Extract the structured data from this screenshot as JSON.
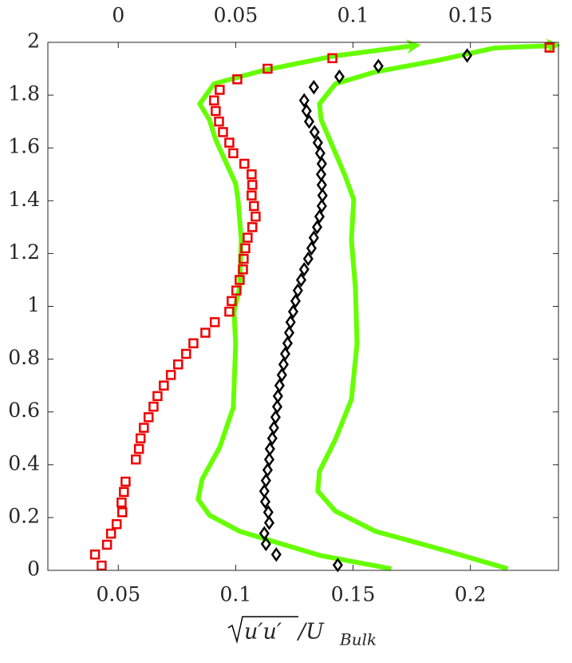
{
  "chart_data": {
    "type": "scatter",
    "xlabel": {
      "root": "u′u′",
      "rest": "/U",
      "sub": "Bulk"
    },
    "xlim": [
      0.02,
      0.2375
    ],
    "xticks": [
      0.05,
      0.1,
      0.15,
      0.2
    ],
    "x2lim": [
      -0.03,
      0.1875
    ],
    "x2ticks": [
      0,
      0.05,
      0.1,
      0.15
    ],
    "ylim": [
      0,
      2
    ],
    "yticks": [
      0,
      0.2,
      0.4,
      0.6,
      0.8,
      1,
      1.2,
      1.4,
      1.6,
      1.8,
      2
    ],
    "series": [
      {
        "style": "line",
        "color": "#66ff00",
        "axis": "x",
        "x": [
          0.1663,
          0.1357,
          0.1017,
          0.0888,
          0.084,
          0.0857,
          0.0932,
          0.099,
          0.1,
          0.0993,
          0.1017,
          0.1024,
          0.101,
          0.1,
          0.0915,
          0.0888,
          0.0847,
          0.0908,
          0.1119,
          0.1425,
          0.1765
        ],
        "y": [
          0.006,
          0.057,
          0.148,
          0.209,
          0.269,
          0.345,
          0.466,
          0.617,
          0.859,
          0.98,
          1.071,
          1.253,
          1.404,
          1.464,
          1.631,
          1.707,
          1.767,
          1.843,
          1.894,
          1.949,
          1.988
        ]
      },
      {
        "style": "line",
        "color": "#66ff00",
        "axis": "x2",
        "x": [
          0.1659,
          0.1401,
          0.1095,
          0.0925,
          0.085,
          0.0857,
          0.0925,
          0.0993,
          0.1017,
          0.101,
          0.0993,
          0.1003,
          0.0966,
          0.0908,
          0.0864,
          0.0857,
          0.0925,
          0.1095,
          0.1367,
          0.1605,
          0.186
        ],
        "y": [
          0.006,
          0.073,
          0.148,
          0.224,
          0.3,
          0.375,
          0.496,
          0.647,
          0.859,
          1.071,
          1.253,
          1.404,
          1.495,
          1.616,
          1.707,
          1.767,
          1.843,
          1.888,
          1.933,
          1.979,
          1.988
        ]
      },
      {
        "style": "square",
        "color": "#ee0000",
        "axis": "x",
        "x": [
          0.0429,
          0.0401,
          0.0452,
          0.0469,
          0.0493,
          0.0517,
          0.0514,
          0.0524,
          0.0531,
          0.0575,
          0.0588,
          0.0595,
          0.0609,
          0.0629,
          0.065,
          0.0667,
          0.0694,
          0.0724,
          0.0755,
          0.0789,
          0.082,
          0.0871,
          0.0911,
          0.0973,
          0.0983,
          0.1003,
          0.1017,
          0.1031,
          0.1034,
          0.1041,
          0.1051,
          0.1071,
          0.1085,
          0.1078,
          0.1068,
          0.1071,
          0.1068,
          0.1037,
          0.099,
          0.0973,
          0.0946,
          0.0929,
          0.0915,
          0.0908,
          0.0932,
          0.1007,
          0.1136,
          0.1412,
          0.2337
        ],
        "y": [
          0.018,
          0.06,
          0.097,
          0.139,
          0.175,
          0.22,
          0.257,
          0.297,
          0.336,
          0.42,
          0.46,
          0.5,
          0.54,
          0.58,
          0.62,
          0.66,
          0.7,
          0.74,
          0.78,
          0.82,
          0.86,
          0.9,
          0.94,
          0.98,
          1.02,
          1.06,
          1.1,
          1.14,
          1.18,
          1.22,
          1.26,
          1.3,
          1.34,
          1.38,
          1.42,
          1.46,
          1.5,
          1.54,
          1.58,
          1.62,
          1.66,
          1.7,
          1.74,
          1.78,
          1.82,
          1.86,
          1.9,
          1.94,
          1.98
        ]
      },
      {
        "style": "diamond",
        "color": "#000000",
        "axis": "x2",
        "x": [
          0.0935,
          0.0673,
          0.0629,
          0.0622,
          0.0643,
          0.0639,
          0.0626,
          0.0622,
          0.0629,
          0.0636,
          0.0643,
          0.0646,
          0.0656,
          0.0663,
          0.067,
          0.0677,
          0.068,
          0.0687,
          0.0697,
          0.0704,
          0.0711,
          0.0721,
          0.0728,
          0.0734,
          0.0745,
          0.0755,
          0.0765,
          0.0779,
          0.0792,
          0.0809,
          0.0823,
          0.0833,
          0.0847,
          0.0857,
          0.0867,
          0.087,
          0.0867,
          0.0864,
          0.0867,
          0.086,
          0.085,
          0.0836,
          0.0813,
          0.0802,
          0.0792,
          0.0833,
          0.0942,
          0.1108,
          0.1486
        ],
        "y": [
          0.02,
          0.06,
          0.1,
          0.14,
          0.18,
          0.22,
          0.26,
          0.3,
          0.34,
          0.38,
          0.42,
          0.46,
          0.5,
          0.54,
          0.58,
          0.62,
          0.66,
          0.7,
          0.74,
          0.78,
          0.82,
          0.86,
          0.9,
          0.94,
          0.98,
          1.02,
          1.06,
          1.1,
          1.14,
          1.18,
          1.22,
          1.26,
          1.3,
          1.34,
          1.38,
          1.42,
          1.46,
          1.5,
          1.54,
          1.58,
          1.62,
          1.66,
          1.7,
          1.74,
          1.78,
          1.83,
          1.87,
          1.91,
          1.95
        ]
      }
    ]
  }
}
